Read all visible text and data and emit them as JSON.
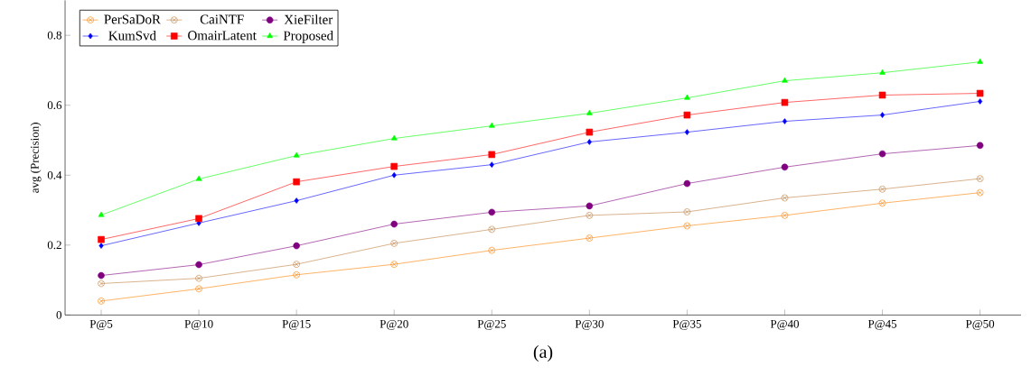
{
  "chart_data": {
    "type": "line",
    "ylabel": "avg (Precision)",
    "categories": [
      "P@5",
      "P@10",
      "P@15",
      "P@20",
      "P@25",
      "P@30",
      "P@35",
      "P@40",
      "P@45",
      "P@50"
    ],
    "series": [
      {
        "name": "PerSaDoR",
        "color": "#ff8000",
        "marker": "cross",
        "values": [
          0.04,
          0.075,
          0.115,
          0.145,
          0.185,
          0.22,
          0.255,
          0.285,
          0.32,
          0.35
        ]
      },
      {
        "name": "CaiNTF",
        "color": "#c08040",
        "marker": "cross",
        "values": [
          0.09,
          0.105,
          0.145,
          0.205,
          0.245,
          0.285,
          0.295,
          0.335,
          0.36,
          0.39
        ]
      },
      {
        "name": "XieFilter",
        "color": "#800080",
        "marker": "circle",
        "values": [
          0.113,
          0.144,
          0.198,
          0.26,
          0.294,
          0.312,
          0.376,
          0.423,
          0.461,
          0.485
        ]
      },
      {
        "name": "KumSvd",
        "color": "#0000ff",
        "marker": "diamond",
        "values": [
          0.198,
          0.263,
          0.327,
          0.4,
          0.43,
          0.495,
          0.523,
          0.554,
          0.572,
          0.611
        ]
      },
      {
        "name": "OmairLatent",
        "color": "#ff0000",
        "marker": "square",
        "values": [
          0.216,
          0.276,
          0.381,
          0.425,
          0.459,
          0.523,
          0.572,
          0.608,
          0.629,
          0.634
        ]
      },
      {
        "name": "Proposed",
        "color": "#00ff00",
        "marker": "triangle",
        "values": [
          0.286,
          0.389,
          0.456,
          0.505,
          0.541,
          0.577,
          0.621,
          0.67,
          0.693,
          0.724
        ]
      }
    ],
    "ylim": [
      0,
      0.9
    ],
    "yticks": [
      0,
      0.2,
      0.4,
      0.6,
      0.8
    ],
    "legend": "top left",
    "grid": false,
    "line_style": "solid",
    "annotations": [
      "(a)"
    ]
  }
}
